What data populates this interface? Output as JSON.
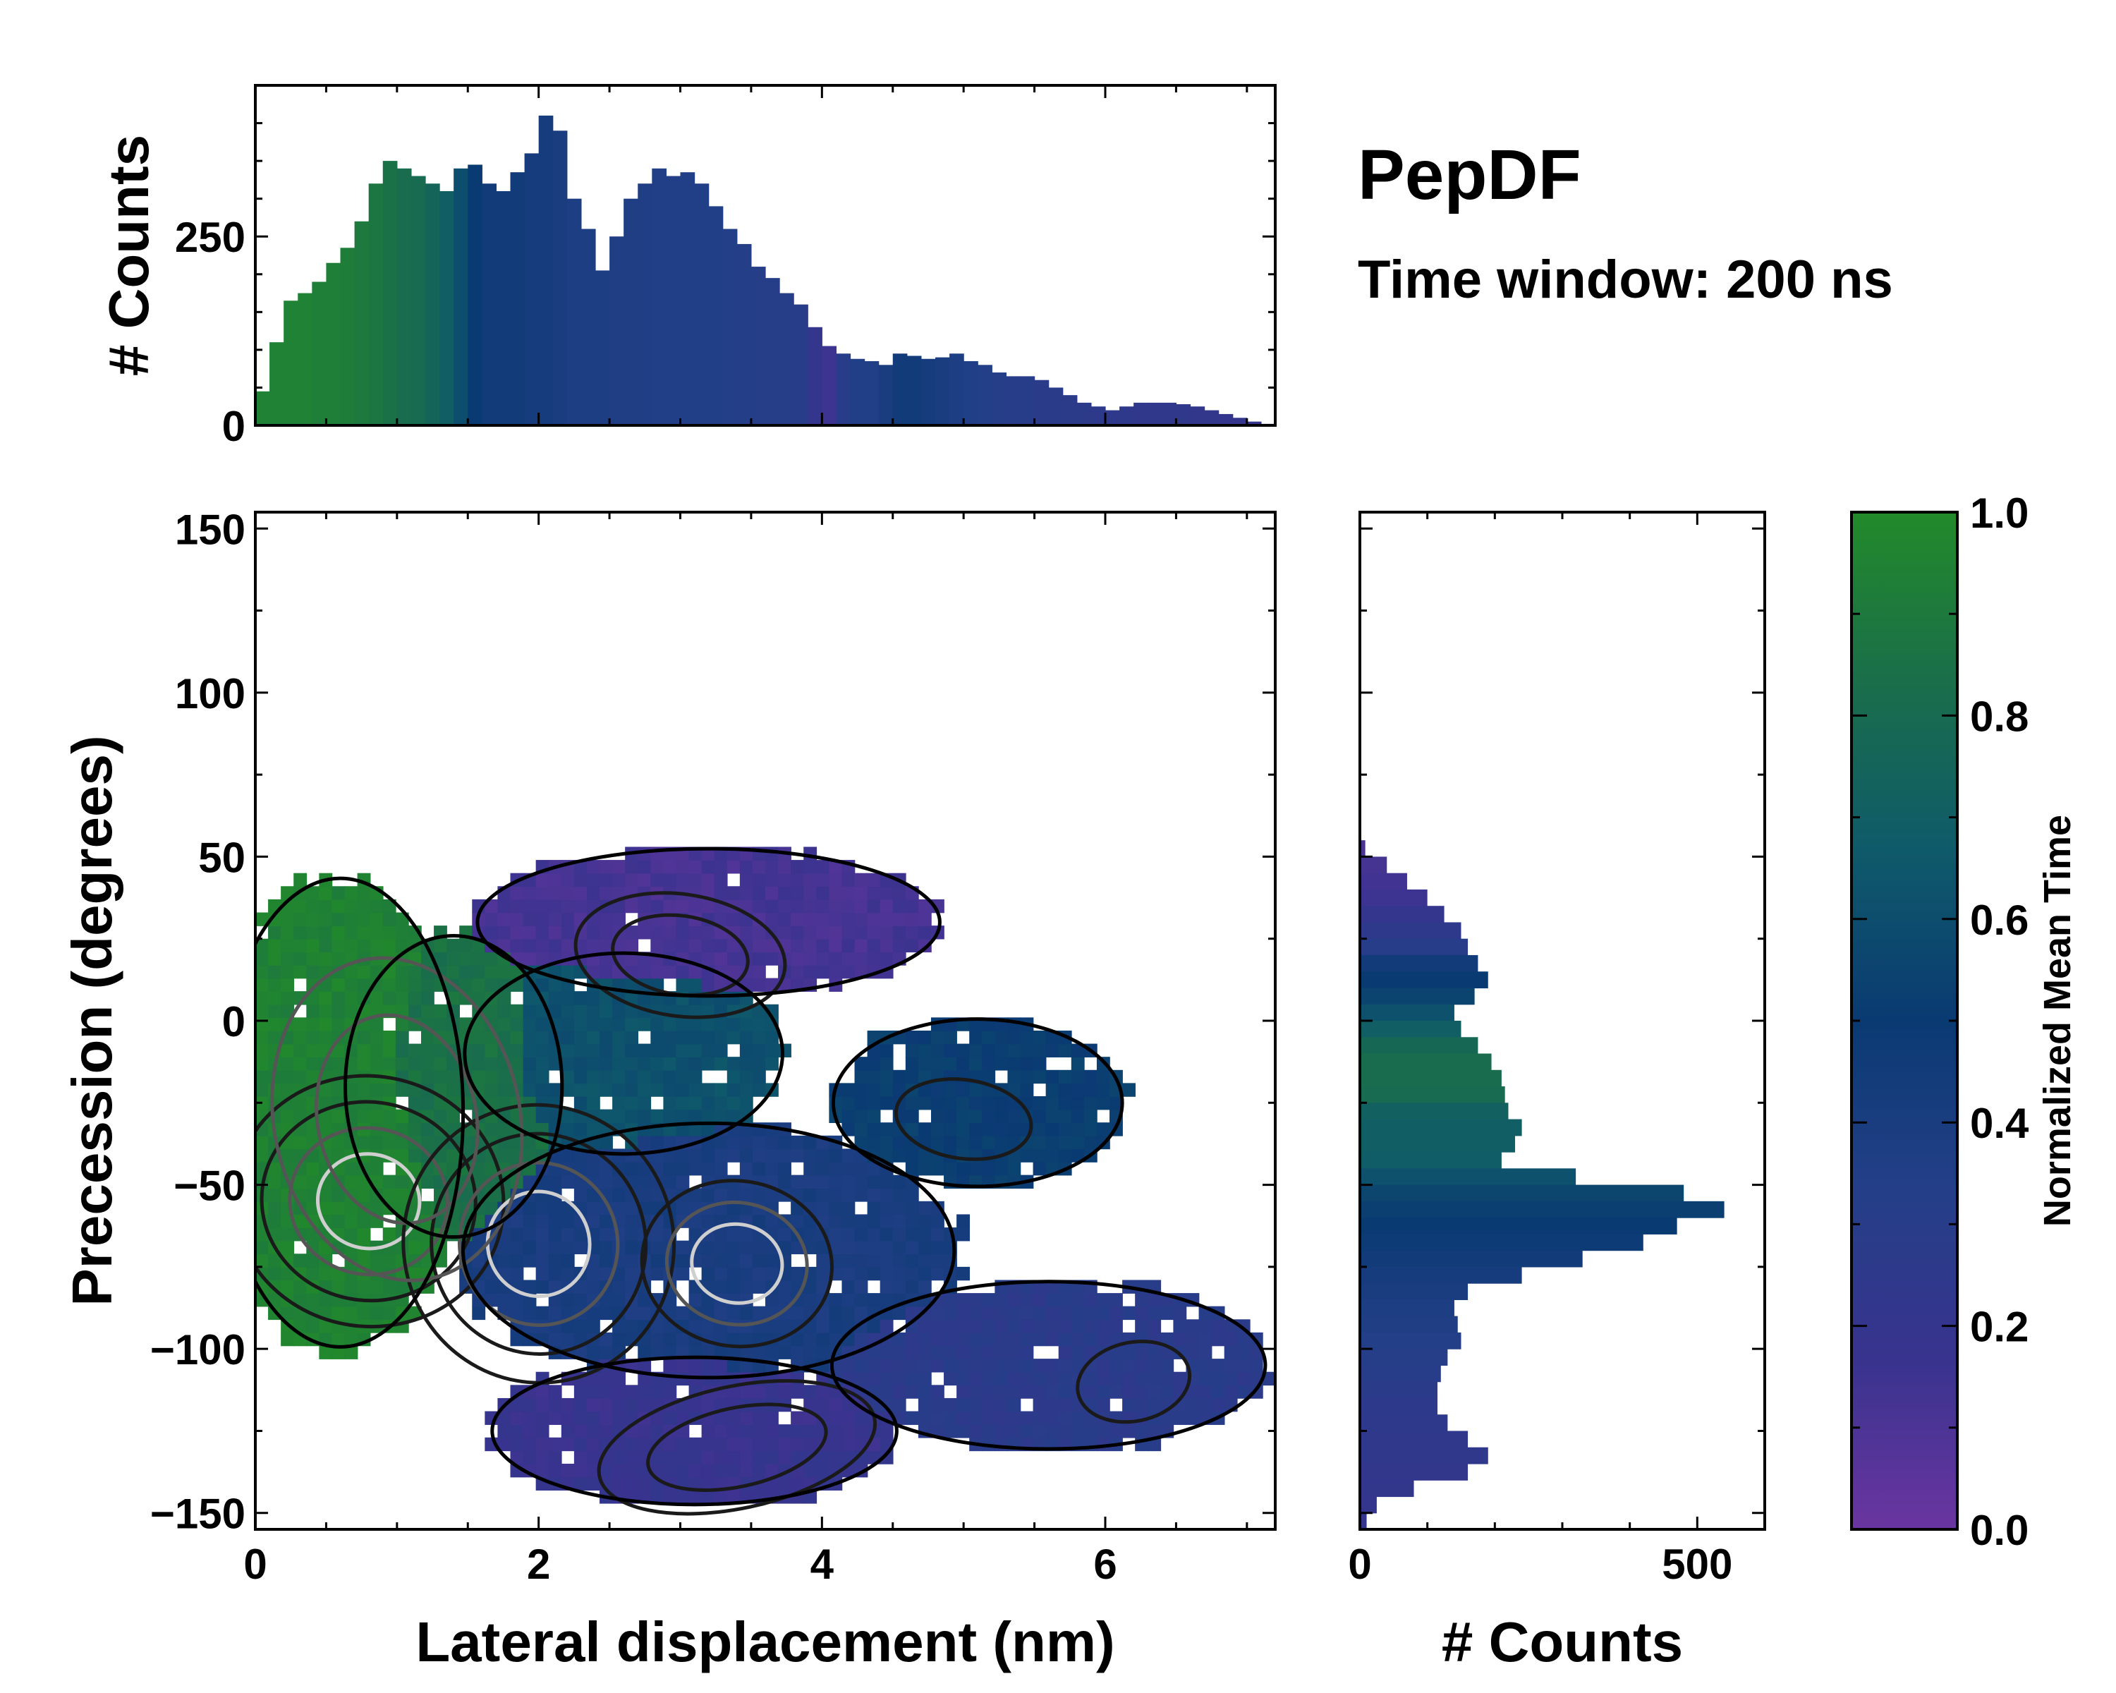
{
  "title": "PepDF",
  "subtitle": "Time window: 200 ns",
  "colors": {
    "cmap": [
      "#6a35a0",
      "#38338e",
      "#243f88",
      "#0a3a72",
      "#0f5a6a",
      "#1a6e4a",
      "#228a2a"
    ],
    "contour_dark": "#1a1a1a",
    "contour_mid": "#555555",
    "contour_light": "#cfcfcf"
  },
  "chart_data": [
    {
      "id": "main_2d",
      "type": "heatmap",
      "xlabel": "Lateral displacement (nm)",
      "ylabel": "Precession (degrees)",
      "xlim": [
        0,
        7.2
      ],
      "ylim": [
        -155,
        155
      ],
      "xticks": [
        0,
        2,
        4,
        6
      ],
      "xtick_labels": [
        "0",
        "2",
        "4",
        "6"
      ],
      "yticks": [
        -150,
        -100,
        -50,
        0,
        50,
        100,
        150
      ],
      "ytick_labels": [
        "−150",
        "−100",
        "−50",
        "0",
        "50",
        "100",
        "150"
      ],
      "regions": [
        {
          "name": "green-left",
          "center": [
            0.6,
            -28
          ],
          "radius": [
            0.85,
            70
          ],
          "value": 0.95
        },
        {
          "name": "green-mid",
          "center": [
            1.4,
            -20
          ],
          "radius": [
            0.75,
            45
          ],
          "value": 0.85
        },
        {
          "name": "teal-mid",
          "center": [
            2.6,
            -10
          ],
          "radius": [
            1.1,
            30
          ],
          "value": 0.62
        },
        {
          "name": "purple-top",
          "center": [
            3.2,
            30
          ],
          "radius": [
            1.6,
            22
          ],
          "value": 0.12
        },
        {
          "name": "navy-center",
          "center": [
            3.2,
            -70
          ],
          "radius": [
            1.7,
            38
          ],
          "value": 0.4
        },
        {
          "name": "purple-bottom",
          "center": [
            3.1,
            -125
          ],
          "radius": [
            1.4,
            22
          ],
          "value": 0.18
        },
        {
          "name": "teal-right",
          "center": [
            5.1,
            -25
          ],
          "radius": [
            1.0,
            25
          ],
          "value": 0.52
        },
        {
          "name": "blue-right",
          "center": [
            5.6,
            -105
          ],
          "radius": [
            1.5,
            25
          ],
          "value": 0.28
        }
      ],
      "density_peaks": [
        {
          "x": 0.8,
          "y": -55,
          "w": 0.45,
          "h": 18,
          "level": 1.0
        },
        {
          "x": 2.0,
          "y": -68,
          "w": 0.45,
          "h": 20,
          "level": 0.9
        },
        {
          "x": 3.4,
          "y": -74,
          "w": 0.4,
          "h": 15,
          "level": 0.85
        },
        {
          "x": 1.0,
          "y": -30,
          "w": 0.7,
          "h": 40,
          "level": 0.55
        },
        {
          "x": 3.0,
          "y": 20,
          "w": 0.6,
          "h": 15,
          "level": 0.45
        },
        {
          "x": 3.4,
          "y": -130,
          "w": 0.8,
          "h": 15,
          "level": 0.4
        },
        {
          "x": 5.0,
          "y": -30,
          "w": 0.6,
          "h": 15,
          "level": 0.3
        },
        {
          "x": 6.2,
          "y": -110,
          "w": 0.5,
          "h": 15,
          "level": 0.25
        }
      ]
    },
    {
      "id": "top_hist",
      "type": "bar",
      "ylabel": "# Counts",
      "xlim": [
        0,
        7.2
      ],
      "ylim": [
        0,
        450
      ],
      "yticks": [
        0,
        250
      ],
      "ytick_labels": [
        "0",
        "250"
      ],
      "x": [
        0.05,
        0.15,
        0.25,
        0.35,
        0.45,
        0.55,
        0.65,
        0.75,
        0.85,
        0.95,
        1.05,
        1.15,
        1.25,
        1.35,
        1.45,
        1.55,
        1.65,
        1.75,
        1.85,
        1.95,
        2.05,
        2.15,
        2.25,
        2.35,
        2.45,
        2.55,
        2.65,
        2.75,
        2.85,
        2.95,
        3.05,
        3.15,
        3.25,
        3.35,
        3.45,
        3.55,
        3.65,
        3.75,
        3.85,
        3.95,
        4.05,
        4.15,
        4.25,
        4.35,
        4.45,
        4.55,
        4.65,
        4.75,
        4.85,
        4.95,
        5.05,
        5.15,
        5.25,
        5.35,
        5.45,
        5.55,
        5.65,
        5.75,
        5.85,
        5.95,
        6.05,
        6.15,
        6.25,
        6.35,
        6.45,
        6.55,
        6.65,
        6.75,
        6.85,
        6.95,
        7.05,
        7.15
      ],
      "values": [
        45,
        110,
        165,
        175,
        190,
        215,
        235,
        270,
        320,
        350,
        340,
        330,
        320,
        310,
        340,
        345,
        320,
        310,
        335,
        360,
        410,
        390,
        300,
        260,
        205,
        250,
        300,
        320,
        340,
        330,
        335,
        320,
        290,
        260,
        240,
        210,
        195,
        175,
        160,
        130,
        105,
        95,
        88,
        85,
        80,
        95,
        92,
        88,
        90,
        95,
        85,
        80,
        70,
        65,
        65,
        60,
        50,
        40,
        30,
        25,
        20,
        25,
        30,
        30,
        30,
        28,
        25,
        20,
        15,
        10,
        5,
        2
      ],
      "colors_value": [
        0.95,
        0.95,
        0.95,
        0.95,
        0.93,
        0.93,
        0.92,
        0.9,
        0.88,
        0.85,
        0.82,
        0.8,
        0.75,
        0.7,
        0.6,
        0.5,
        0.45,
        0.45,
        0.45,
        0.42,
        0.42,
        0.4,
        0.38,
        0.37,
        0.37,
        0.36,
        0.36,
        0.36,
        0.35,
        0.35,
        0.35,
        0.35,
        0.35,
        0.34,
        0.33,
        0.32,
        0.32,
        0.32,
        0.3,
        0.2,
        0.15,
        0.3,
        0.35,
        0.35,
        0.4,
        0.45,
        0.45,
        0.42,
        0.4,
        0.38,
        0.35,
        0.34,
        0.32,
        0.3,
        0.3,
        0.28,
        0.28,
        0.27,
        0.27,
        0.26,
        0.25,
        0.25,
        0.24,
        0.24,
        0.23,
        0.23,
        0.22,
        0.22,
        0.21,
        0.2,
        0.2,
        0.2
      ]
    },
    {
      "id": "right_hist",
      "type": "bar",
      "orientation": "horizontal",
      "xlabel": "# Counts",
      "xlim": [
        0,
        600
      ],
      "ylim": [
        -155,
        155
      ],
      "xticks": [
        0,
        500
      ],
      "xtick_labels": [
        "0",
        "500"
      ],
      "y": [
        52.5,
        47.5,
        42.5,
        37.5,
        32.5,
        27.5,
        22.5,
        17.5,
        12.5,
        7.5,
        2.5,
        -2.5,
        -7.5,
        -12.5,
        -17.5,
        -22.5,
        -27.5,
        -32.5,
        -37.5,
        -42.5,
        -47.5,
        -52.5,
        -57.5,
        -62.5,
        -67.5,
        -72.5,
        -77.5,
        -82.5,
        -87.5,
        -92.5,
        -97.5,
        -102.5,
        -107.5,
        -112.5,
        -117.5,
        -122.5,
        -127.5,
        -132.5,
        -137.5,
        -142.5,
        -147.5,
        -152.5
      ],
      "values": [
        8,
        40,
        70,
        100,
        125,
        150,
        160,
        175,
        190,
        170,
        140,
        150,
        175,
        195,
        210,
        215,
        220,
        240,
        230,
        210,
        320,
        480,
        540,
        470,
        420,
        330,
        240,
        160,
        140,
        145,
        150,
        130,
        120,
        115,
        115,
        130,
        160,
        190,
        160,
        80,
        25,
        10
      ],
      "colors_value": [
        0.1,
        0.12,
        0.14,
        0.15,
        0.2,
        0.25,
        0.3,
        0.45,
        0.5,
        0.55,
        0.62,
        0.7,
        0.78,
        0.82,
        0.82,
        0.8,
        0.72,
        0.7,
        0.7,
        0.68,
        0.62,
        0.56,
        0.52,
        0.5,
        0.48,
        0.45,
        0.42,
        0.4,
        0.38,
        0.36,
        0.34,
        0.32,
        0.3,
        0.28,
        0.26,
        0.25,
        0.24,
        0.24,
        0.22,
        0.22,
        0.2,
        0.2
      ]
    },
    {
      "id": "colorbar",
      "type": "colorbar",
      "label": "Normalized Mean Time",
      "ylim": [
        0,
        1
      ],
      "ticks": [
        0.0,
        0.2,
        0.4,
        0.6,
        0.8,
        1.0
      ],
      "tick_labels": [
        "0.0",
        "0.2",
        "0.4",
        "0.6",
        "0.8",
        "1.0"
      ]
    }
  ]
}
